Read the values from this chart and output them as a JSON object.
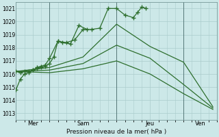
{
  "bg_color": "#cce8e8",
  "grid_color": "#aacccc",
  "line_color": "#2d6e2d",
  "title": "Pression niveau de la mer( hPa )",
  "ylim": [
    1012.5,
    1021.5
  ],
  "yticks": [
    1013,
    1014,
    1015,
    1016,
    1017,
    1018,
    1019,
    1020,
    1021
  ],
  "xlim": [
    0,
    24
  ],
  "vlines": [
    4,
    12,
    20
  ],
  "xtick_positions": [
    2,
    8,
    16,
    22
  ],
  "xtick_labels": [
    "Mer",
    "Sam",
    "Jeu",
    "Ven"
  ],
  "series": [
    {
      "x": [
        0.0,
        0.5,
        1.0,
        1.5,
        2.0,
        2.5,
        3.0,
        3.5,
        4.0,
        4.5,
        5.0,
        5.5,
        6.5,
        7.5,
        8.5
      ],
      "y": [
        1014.8,
        1015.6,
        1016.0,
        1016.1,
        1016.3,
        1016.4,
        1016.5,
        1016.6,
        1016.8,
        1017.3,
        1018.5,
        1018.4,
        1018.3,
        1019.7,
        1019.4
      ],
      "marker": true
    },
    {
      "x": [
        0.0,
        0.5,
        1.0,
        1.5,
        2.0,
        2.5,
        3.0,
        3.5,
        4.0,
        5.0,
        6.0,
        7.0,
        8.0,
        9.0,
        10.0,
        11.0,
        12.0,
        13.0,
        14.0,
        14.5,
        15.0,
        15.5
      ],
      "y": [
        1016.2,
        1016.1,
        1016.2,
        1016.2,
        1016.3,
        1016.5,
        1016.6,
        1016.7,
        1017.2,
        1018.5,
        1018.4,
        1018.6,
        1019.4,
        1019.4,
        1019.5,
        1021.0,
        1021.0,
        1020.5,
        1020.3,
        1020.7,
        1021.1,
        1021.0
      ],
      "marker": true
    },
    {
      "x": [
        0.0,
        4.0,
        8.0,
        12.0,
        16.0,
        20.0,
        23.5
      ],
      "y": [
        1016.2,
        1016.5,
        1017.3,
        1019.8,
        1018.1,
        1016.9,
        1013.5
      ],
      "marker": false
    },
    {
      "x": [
        0.0,
        4.0,
        8.0,
        12.0,
        16.0,
        20.0,
        23.5
      ],
      "y": [
        1016.2,
        1016.3,
        1016.8,
        1018.2,
        1017.2,
        1015.2,
        1013.4
      ],
      "marker": false
    },
    {
      "x": [
        0.0,
        4.0,
        8.0,
        12.0,
        16.0,
        20.0,
        23.5
      ],
      "y": [
        1016.2,
        1016.1,
        1016.4,
        1017.0,
        1016.0,
        1014.5,
        1013.3
      ],
      "marker": false
    }
  ],
  "figsize": [
    3.2,
    2.0
  ],
  "dpi": 100
}
